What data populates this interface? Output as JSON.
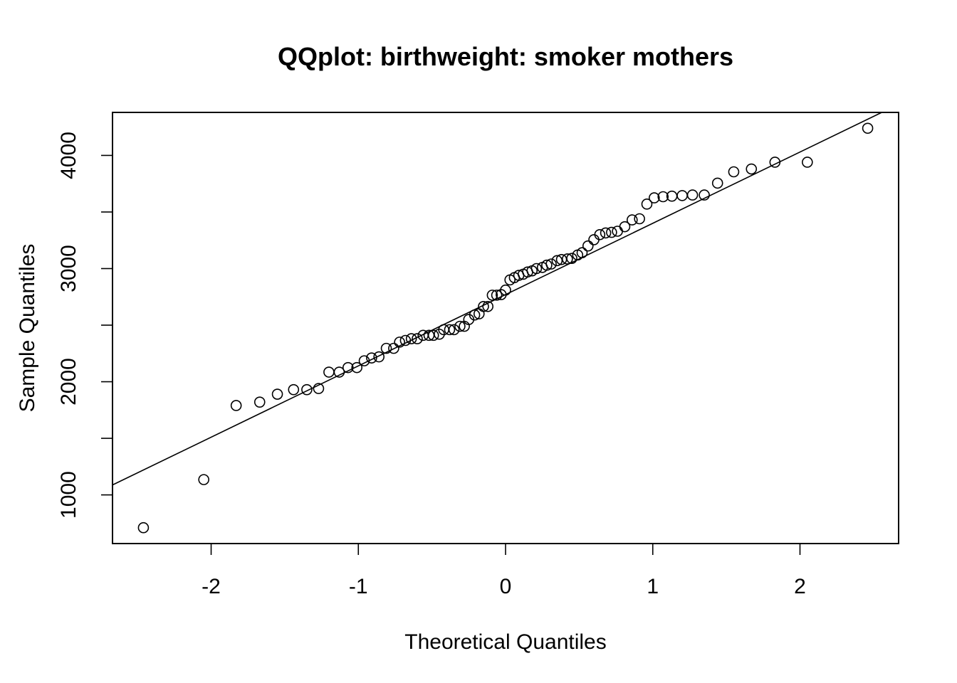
{
  "chart_data": {
    "type": "scatter",
    "title": "QQplot: birthweight: smoker mothers",
    "xlabel": "Theoretical Quantiles",
    "ylabel": "Sample Quantiles",
    "xlim": [
      -2.67,
      2.67
    ],
    "ylim": [
      570,
      4380
    ],
    "x_ticks": [
      -2,
      -1,
      0,
      1,
      2
    ],
    "x_tick_labels": [
      "-2",
      "-1",
      "0",
      "1",
      "2"
    ],
    "y_ticks": [
      1000,
      1500,
      2000,
      2500,
      3000,
      3500,
      4000
    ],
    "y_tick_labels": [
      "1000",
      "",
      "2000",
      "",
      "3000",
      "",
      "4000"
    ],
    "grid": false,
    "reference_line": {
      "intercept": 2770,
      "slope": 630
    },
    "points": [
      {
        "x": -2.46,
        "y": 710
      },
      {
        "x": -2.05,
        "y": 1135
      },
      {
        "x": -1.83,
        "y": 1790
      },
      {
        "x": -1.67,
        "y": 1820
      },
      {
        "x": -1.55,
        "y": 1890
      },
      {
        "x": -1.44,
        "y": 1930
      },
      {
        "x": -1.35,
        "y": 1930
      },
      {
        "x": -1.27,
        "y": 1940
      },
      {
        "x": -1.2,
        "y": 2085
      },
      {
        "x": -1.13,
        "y": 2085
      },
      {
        "x": -1.07,
        "y": 2125
      },
      {
        "x": -1.01,
        "y": 2125
      },
      {
        "x": -0.96,
        "y": 2185
      },
      {
        "x": -0.91,
        "y": 2210
      },
      {
        "x": -0.86,
        "y": 2220
      },
      {
        "x": -0.81,
        "y": 2295
      },
      {
        "x": -0.76,
        "y": 2295
      },
      {
        "x": -0.72,
        "y": 2350
      },
      {
        "x": -0.68,
        "y": 2365
      },
      {
        "x": -0.64,
        "y": 2380
      },
      {
        "x": -0.6,
        "y": 2380
      },
      {
        "x": -0.56,
        "y": 2410
      },
      {
        "x": -0.52,
        "y": 2410
      },
      {
        "x": -0.49,
        "y": 2410
      },
      {
        "x": -0.45,
        "y": 2420
      },
      {
        "x": -0.42,
        "y": 2460
      },
      {
        "x": -0.38,
        "y": 2460
      },
      {
        "x": -0.35,
        "y": 2460
      },
      {
        "x": -0.31,
        "y": 2490
      },
      {
        "x": -0.28,
        "y": 2490
      },
      {
        "x": -0.25,
        "y": 2550
      },
      {
        "x": -0.21,
        "y": 2590
      },
      {
        "x": -0.18,
        "y": 2600
      },
      {
        "x": -0.15,
        "y": 2665
      },
      {
        "x": -0.12,
        "y": 2665
      },
      {
        "x": -0.09,
        "y": 2765
      },
      {
        "x": -0.06,
        "y": 2765
      },
      {
        "x": -0.03,
        "y": 2770
      },
      {
        "x": 0.0,
        "y": 2810
      },
      {
        "x": 0.03,
        "y": 2900
      },
      {
        "x": 0.06,
        "y": 2920
      },
      {
        "x": 0.09,
        "y": 2940
      },
      {
        "x": 0.12,
        "y": 2950
      },
      {
        "x": 0.15,
        "y": 2970
      },
      {
        "x": 0.18,
        "y": 2980
      },
      {
        "x": 0.21,
        "y": 3000
      },
      {
        "x": 0.25,
        "y": 3010
      },
      {
        "x": 0.28,
        "y": 3030
      },
      {
        "x": 0.31,
        "y": 3040
      },
      {
        "x": 0.35,
        "y": 3070
      },
      {
        "x": 0.38,
        "y": 3080
      },
      {
        "x": 0.42,
        "y": 3085
      },
      {
        "x": 0.45,
        "y": 3090
      },
      {
        "x": 0.49,
        "y": 3120
      },
      {
        "x": 0.52,
        "y": 3140
      },
      {
        "x": 0.56,
        "y": 3200
      },
      {
        "x": 0.6,
        "y": 3255
      },
      {
        "x": 0.64,
        "y": 3300
      },
      {
        "x": 0.68,
        "y": 3315
      },
      {
        "x": 0.72,
        "y": 3320
      },
      {
        "x": 0.76,
        "y": 3330
      },
      {
        "x": 0.81,
        "y": 3370
      },
      {
        "x": 0.86,
        "y": 3430
      },
      {
        "x": 0.91,
        "y": 3440
      },
      {
        "x": 0.96,
        "y": 3570
      },
      {
        "x": 1.01,
        "y": 3625
      },
      {
        "x": 1.07,
        "y": 3635
      },
      {
        "x": 1.13,
        "y": 3640
      },
      {
        "x": 1.2,
        "y": 3645
      },
      {
        "x": 1.27,
        "y": 3650
      },
      {
        "x": 1.35,
        "y": 3650
      },
      {
        "x": 1.44,
        "y": 3755
      },
      {
        "x": 1.55,
        "y": 3855
      },
      {
        "x": 1.67,
        "y": 3880
      },
      {
        "x": 1.83,
        "y": 3940
      },
      {
        "x": 2.05,
        "y": 3940
      },
      {
        "x": 2.46,
        "y": 4240
      }
    ]
  }
}
